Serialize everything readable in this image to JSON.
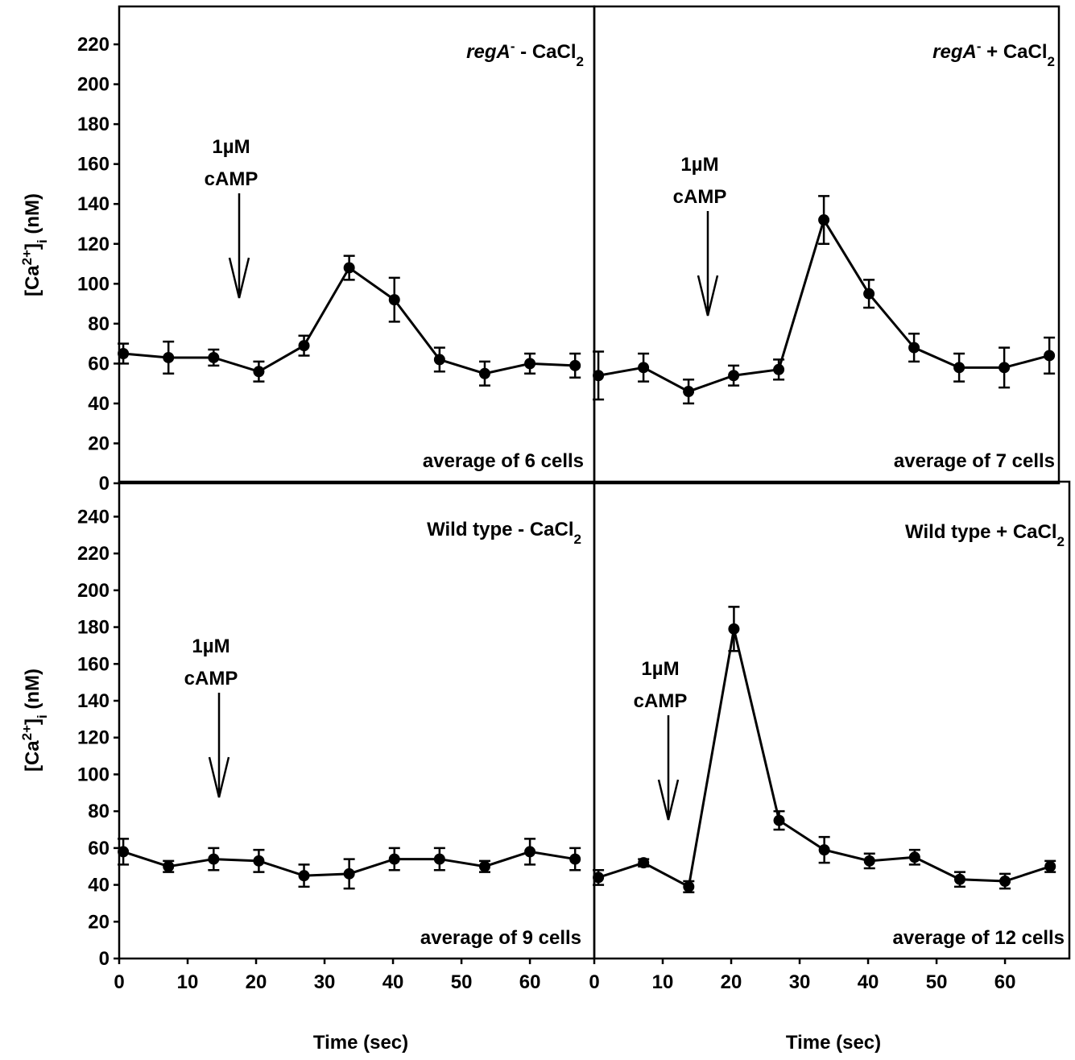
{
  "chart_data": [
    {
      "type": "line",
      "title": [
        {
          "text": "regA",
          "font": "italic"
        },
        {
          "text": "-",
          "font": "sup"
        },
        {
          "text": " - CaCl"
        },
        {
          "text": "2",
          "font": "sub"
        }
      ],
      "ylabel": [
        {
          "text": "[Ca"
        },
        {
          "text": "2+",
          "font": "sup"
        },
        {
          "text": "]"
        },
        {
          "text": "i",
          "font": "sub"
        },
        {
          "text": " (nM)"
        }
      ],
      "note": "average of 6 cells",
      "annotation": [
        "1µM",
        "cAMP"
      ],
      "x": [
        0.6,
        7.2,
        13.8,
        20.4,
        27.0,
        33.6,
        40.2,
        46.8,
        53.4,
        60.0,
        66.6
      ],
      "series": [
        {
          "color": "#000000",
          "values": [
            65,
            63,
            63,
            56,
            69,
            108,
            92,
            62,
            55,
            60,
            59
          ],
          "errors": [
            5,
            8,
            4,
            5,
            5,
            6,
            11,
            6,
            6,
            5,
            6
          ]
        }
      ],
      "xlim": [
        0,
        69.4
      ],
      "ylim": [
        0,
        239
      ],
      "yticks": [
        0,
        20,
        40,
        60,
        80,
        100,
        120,
        140,
        160,
        180,
        200,
        220
      ]
    },
    {
      "type": "line",
      "title": [
        {
          "text": "regA",
          "font": "italic"
        },
        {
          "text": "-",
          "font": "sup"
        },
        {
          "text": " + CaCl"
        },
        {
          "text": "2",
          "font": "sub"
        }
      ],
      "note": "average of 7 cells",
      "annotation": [
        "1µM",
        "cAMP"
      ],
      "x": [
        0.6,
        7.2,
        13.8,
        20.4,
        27.0,
        33.6,
        40.2,
        46.8,
        53.4,
        60.0,
        66.6
      ],
      "series": [
        {
          "color": "#000000",
          "values": [
            54,
            58,
            46,
            54,
            57,
            132,
            95,
            68,
            58,
            58,
            64
          ],
          "errors": [
            12,
            7,
            6,
            5,
            5,
            12,
            7,
            7,
            7,
            10,
            9
          ]
        }
      ],
      "xlim": [
        0,
        68
      ],
      "ylim": [
        0,
        239
      ]
    },
    {
      "type": "line",
      "title": [
        {
          "text": "Wild type - CaCl"
        },
        {
          "text": "2",
          "font": "sub"
        }
      ],
      "ylabel": [
        {
          "text": "[Ca"
        },
        {
          "text": "2+",
          "font": "sup"
        },
        {
          "text": "]"
        },
        {
          "text": "i",
          "font": "sub"
        },
        {
          "text": " (nM)"
        }
      ],
      "xlabel": "Time (sec)",
      "note": "average of 9 cells",
      "annotation": [
        "1µM",
        "cAMP"
      ],
      "x": [
        0.6,
        7.2,
        13.8,
        20.4,
        27.0,
        33.6,
        40.2,
        46.8,
        53.4,
        60.0,
        66.6
      ],
      "series": [
        {
          "color": "#000000",
          "values": [
            58,
            50,
            54,
            53,
            45,
            46,
            54,
            54,
            50,
            58,
            54
          ],
          "errors": [
            7,
            3,
            6,
            6,
            6,
            8,
            6,
            6,
            3,
            7,
            6
          ]
        }
      ],
      "xlim": [
        0,
        69.4
      ],
      "ylim": [
        0,
        259
      ],
      "xticks": [
        0,
        10,
        20,
        30,
        40,
        50,
        60
      ],
      "yticks": [
        0,
        20,
        40,
        60,
        80,
        100,
        120,
        140,
        160,
        180,
        200,
        220,
        240
      ]
    },
    {
      "type": "line",
      "title": [
        {
          "text": "Wild type + CaCl"
        },
        {
          "text": "2",
          "font": "sub"
        }
      ],
      "xlabel": "Time (sec)",
      "note": "average of 12 cells",
      "annotation": [
        "1µM",
        "cAMP"
      ],
      "x": [
        0.6,
        7.2,
        13.8,
        20.4,
        27.0,
        33.6,
        40.2,
        46.8,
        53.4,
        60.0,
        66.6
      ],
      "series": [
        {
          "color": "#000000",
          "values": [
            44,
            52,
            39,
            179,
            75,
            59,
            53,
            55,
            43,
            42,
            50
          ],
          "errors": [
            4,
            2,
            3,
            12,
            5,
            7,
            4,
            4,
            4,
            4,
            3
          ]
        }
      ],
      "xlim": [
        0,
        69.4
      ],
      "ylim": [
        0,
        259
      ],
      "xticks": [
        0,
        10,
        20,
        30,
        40,
        50,
        60
      ]
    }
  ]
}
